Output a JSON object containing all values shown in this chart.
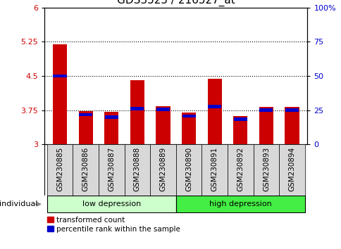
{
  "title": "GDS3525 / 216527_at",
  "categories": [
    "GSM230885",
    "GSM230886",
    "GSM230887",
    "GSM230888",
    "GSM230889",
    "GSM230890",
    "GSM230891",
    "GSM230892",
    "GSM230893",
    "GSM230894"
  ],
  "red_values": [
    5.19,
    3.73,
    3.71,
    4.4,
    3.83,
    3.7,
    4.44,
    3.62,
    3.82,
    3.82
  ],
  "blue_values": [
    4.5,
    3.65,
    3.6,
    3.78,
    3.77,
    3.62,
    3.83,
    3.55,
    3.75,
    3.75
  ],
  "ymin": 3.0,
  "ymax": 6.0,
  "yticks": [
    3,
    3.75,
    4.5,
    5.25,
    6
  ],
  "ytick_labels": [
    "3",
    "3.75",
    "4.5",
    "5.25",
    "6"
  ],
  "right_yticks_pct": [
    0,
    25,
    50,
    75,
    100
  ],
  "right_ytick_labels": [
    "0",
    "25",
    "50",
    "75",
    "100%"
  ],
  "hlines": [
    3.75,
    4.5,
    5.25
  ],
  "red_color": "#cc0000",
  "blue_color": "#0000cc",
  "bar_width": 0.55,
  "blue_bar_height": 0.07,
  "group_low_color": "#ccffcc",
  "group_high_color": "#44ee44",
  "xlabel_text": "individual",
  "legend_red": "transformed count",
  "legend_blue": "percentile rank within the sample",
  "left_tick_color": "#cc0000",
  "right_tick_color": "#0000cc",
  "title_fontsize": 11,
  "label_fontsize": 7.5,
  "tick_fontsize": 8,
  "tickbox_color": "#d8d8d8",
  "n_low": 5,
  "n_high": 5
}
